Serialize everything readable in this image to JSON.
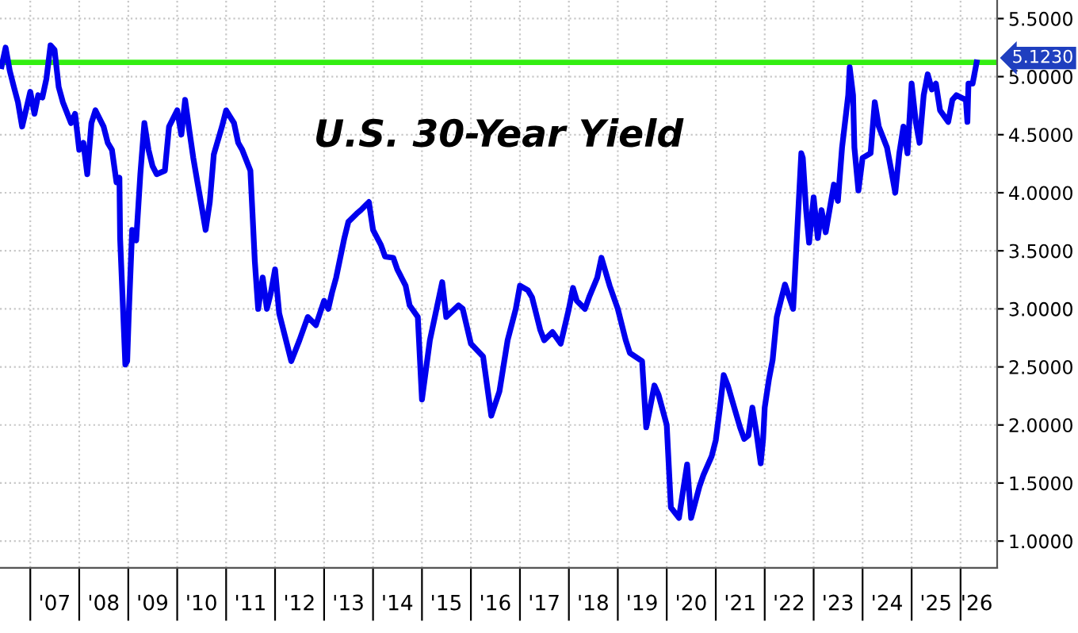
{
  "chart_data": {
    "type": "line",
    "title": "U.S. 30-Year Yield",
    "x": [
      "2006-06",
      "2006-07",
      "2006-08",
      "2006-09",
      "2006-10",
      "2006-11",
      "2007-01",
      "2007-02",
      "2007-03",
      "2007-04",
      "2007-05",
      "2007-06",
      "2007-07",
      "2007-08",
      "2007-09",
      "2007-11",
      "2007-12",
      "2008-01",
      "2008-02",
      "2008-03",
      "2008-04",
      "2008-05",
      "2008-07",
      "2008-08",
      "2008-09",
      "2008-10-05",
      "2008-10-27",
      "2008-11",
      "2008-12-10",
      "2008-12-24",
      "2009-01-04",
      "2009-01-30",
      "2009-03",
      "2009-04",
      "2009-05",
      "2009-06",
      "2009-07",
      "2009-08",
      "2009-10",
      "2009-11",
      "2010-01",
      "2010-02",
      "2010-03",
      "2010-04",
      "2010-05",
      "2010-06",
      "2010-07",
      "2010-08",
      "2010-09",
      "2010-10",
      "2010-12",
      "2011-01",
      "2011-03",
      "2011-04",
      "2011-05",
      "2011-07",
      "2011-08-03",
      "2011-08-28",
      "2011-10",
      "2011-11",
      "2011-12",
      "2012-01",
      "2012-02",
      "2012-05",
      "2012-07",
      "2012-09",
      "2012-11",
      "2013-01",
      "2013-02",
      "2013-03",
      "2013-04",
      "2013-06",
      "2013-07",
      "2013-09",
      "2013-10",
      "2013-12",
      "2014-01",
      "2014-03",
      "2014-04",
      "2014-06",
      "2014-07",
      "2014-09",
      "2014-10",
      "2014-12",
      "2015-01",
      "2015-03",
      "2015-06",
      "2015-07",
      "2015-10",
      "2015-11",
      "2016-01",
      "2016-04",
      "2016-06",
      "2016-08",
      "2016-10",
      "2016-12",
      "2017-01",
      "2017-03",
      "2017-04",
      "2017-06",
      "2017-07",
      "2017-09",
      "2017-11",
      "2018-01",
      "2018-02",
      "2018-03",
      "2018-05",
      "2018-06",
      "2018-08",
      "2018-09",
      "2018-11",
      "2019-01",
      "2019-03",
      "2019-04",
      "2019-07",
      "2019-08",
      "2019-10",
      "2019-11",
      "2020-01",
      "2020-02",
      "2020-04",
      "2020-06",
      "2020-07",
      "2020-09",
      "2020-10",
      "2020-12",
      "2021-01",
      "2021-02",
      "2021-03",
      "2021-04",
      "2021-05",
      "2021-07",
      "2021-08",
      "2021-09",
      "2021-10",
      "2021-11",
      "2021-12-02",
      "2021-12-20",
      "2022-01",
      "2022-02",
      "2022-03",
      "2022-04",
      "2022-05",
      "2022-06",
      "2022-08",
      "2022-10-01",
      "2022-10-12",
      "2022-11-06",
      "2022-11-28",
      "2023-01",
      "2023-02",
      "2023-03",
      "2023-04",
      "2023-06",
      "2023-07",
      "2023-08",
      "2023-09-16",
      "2023-09-27",
      "2023-10-22",
      "2023-11",
      "2023-12",
      "2024-01",
      "2024-03",
      "2024-04",
      "2024-05",
      "2024-07",
      "2024-08",
      "2024-09",
      "2024-10",
      "2024-11",
      "2024-12",
      "2025-01",
      "2025-02",
      "2025-03",
      "2025-04",
      "2025-05",
      "2025-06",
      "2025-07",
      "2025-08",
      "2025-10",
      "2025-11",
      "2025-12",
      "2026-02-10",
      "2026-02-21",
      "2026-03",
      "2026-04",
      "2026-05"
    ],
    "series": [
      {
        "color": "#0000ee",
        "values": [
          5.09,
          5.25,
          5.05,
          4.91,
          4.78,
          4.57,
          4.87,
          4.68,
          4.84,
          4.82,
          4.98,
          5.27,
          5.23,
          4.91,
          4.78,
          4.6,
          4.68,
          4.37,
          4.43,
          4.16,
          4.6,
          4.71,
          4.57,
          4.43,
          4.37,
          4.09,
          4.13,
          3.61,
          2.52,
          2.55,
          2.93,
          3.68,
          3.59,
          4.16,
          4.6,
          4.37,
          4.23,
          4.16,
          4.19,
          4.57,
          4.71,
          4.5,
          4.8,
          4.54,
          4.3,
          4.09,
          3.89,
          3.68,
          3.92,
          4.33,
          4.57,
          4.71,
          4.6,
          4.43,
          4.37,
          4.19,
          3.41,
          3.0,
          3.27,
          3.0,
          3.14,
          3.34,
          2.96,
          2.55,
          2.73,
          2.93,
          2.86,
          3.07,
          3.0,
          3.14,
          3.27,
          3.61,
          3.75,
          3.82,
          3.85,
          3.92,
          3.68,
          3.55,
          3.45,
          3.44,
          3.34,
          3.2,
          3.03,
          2.93,
          2.22,
          2.73,
          3.23,
          2.93,
          3.03,
          3.0,
          2.7,
          2.59,
          2.08,
          2.29,
          2.73,
          3.0,
          3.2,
          3.16,
          3.1,
          2.82,
          2.73,
          2.8,
          2.7,
          3.0,
          3.18,
          3.07,
          3.0,
          3.1,
          3.27,
          3.44,
          3.2,
          3.0,
          2.73,
          2.62,
          2.55,
          1.98,
          2.34,
          2.26,
          2.0,
          1.29,
          1.2,
          1.66,
          1.2,
          1.47,
          1.57,
          1.73,
          1.87,
          2.15,
          2.43,
          2.34,
          2.22,
          1.98,
          1.88,
          1.91,
          2.15,
          1.93,
          1.67,
          1.88,
          2.15,
          2.39,
          2.56,
          2.93,
          3.07,
          3.21,
          3.0,
          4.34,
          4.3,
          3.85,
          3.57,
          3.96,
          3.61,
          3.85,
          3.66,
          4.07,
          3.93,
          4.39,
          4.84,
          5.08,
          4.84,
          4.39,
          4.02,
          4.3,
          4.34,
          4.78,
          4.57,
          4.39,
          4.2,
          4.0,
          4.34,
          4.57,
          4.34,
          4.94,
          4.61,
          4.43,
          4.84,
          5.02,
          4.89,
          4.94,
          4.71,
          4.61,
          4.8,
          4.84,
          4.8,
          4.61,
          4.94,
          4.94,
          5.123
        ]
      }
    ],
    "xlim": [
      "2006-05-20",
      "2026-10-01"
    ],
    "ylim": [
      0.77,
      5.66
    ],
    "xticks": [
      {
        "value": "2007-01",
        "label": null
      },
      {
        "value": "2007-07",
        "label": "'07"
      },
      {
        "value": "2008-01",
        "label": null
      },
      {
        "value": "2008-07",
        "label": "'08"
      },
      {
        "value": "2009-01",
        "label": null
      },
      {
        "value": "2009-07",
        "label": "'09"
      },
      {
        "value": "2010-01",
        "label": null
      },
      {
        "value": "2010-07",
        "label": "'10"
      },
      {
        "value": "2011-01",
        "label": null
      },
      {
        "value": "2011-07",
        "label": "'11"
      },
      {
        "value": "2012-01",
        "label": null
      },
      {
        "value": "2012-07",
        "label": "'12"
      },
      {
        "value": "2013-01",
        "label": null
      },
      {
        "value": "2013-07",
        "label": "'13"
      },
      {
        "value": "2014-01",
        "label": null
      },
      {
        "value": "2014-07",
        "label": "'14"
      },
      {
        "value": "2015-01",
        "label": null
      },
      {
        "value": "2015-07",
        "label": "'15"
      },
      {
        "value": "2016-01",
        "label": null
      },
      {
        "value": "2016-07",
        "label": "'16"
      },
      {
        "value": "2017-01",
        "label": null
      },
      {
        "value": "2017-07",
        "label": "'17"
      },
      {
        "value": "2018-01",
        "label": null
      },
      {
        "value": "2018-07",
        "label": "'18"
      },
      {
        "value": "2019-01",
        "label": null
      },
      {
        "value": "2019-07",
        "label": "'19"
      },
      {
        "value": "2020-01",
        "label": null
      },
      {
        "value": "2020-07",
        "label": "'20"
      },
      {
        "value": "2021-01",
        "label": null
      },
      {
        "value": "2021-07",
        "label": "'21"
      },
      {
        "value": "2022-01",
        "label": null
      },
      {
        "value": "2022-07",
        "label": "'22"
      },
      {
        "value": "2023-01",
        "label": null
      },
      {
        "value": "2023-07",
        "label": "'23"
      },
      {
        "value": "2024-01",
        "label": null
      },
      {
        "value": "2024-07",
        "label": "'24"
      },
      {
        "value": "2025-01",
        "label": null
      },
      {
        "value": "2025-07",
        "label": "'25"
      },
      {
        "value": "2026-01",
        "label": null
      },
      {
        "value": "2026-05",
        "label": "'26"
      }
    ],
    "yticks": [
      {
        "value": 1,
        "label": "1.0000"
      },
      {
        "value": 1.5,
        "label": "1.5000"
      },
      {
        "value": 2,
        "label": "2.0000"
      },
      {
        "value": 2.5,
        "label": "2.5000"
      },
      {
        "value": 3,
        "label": "3.0000"
      },
      {
        "value": 3.5,
        "label": "3.5000"
      },
      {
        "value": 4,
        "label": "4.0000"
      },
      {
        "value": 4.5,
        "label": "4.5000"
      },
      {
        "value": 5,
        "label": "5.0000"
      },
      {
        "value": 5.5,
        "label": "5.5000"
      }
    ],
    "ref_lines": [
      {
        "axis": "y",
        "value": 5.123,
        "color": "#33ee11",
        "line_style": "solid"
      }
    ],
    "annotations": [
      {
        "text": "5.1230",
        "x": "2026-05",
        "y": 5.123
      }
    ],
    "grid": true,
    "legend": false,
    "marker": "none",
    "line_style": "solid"
  }
}
